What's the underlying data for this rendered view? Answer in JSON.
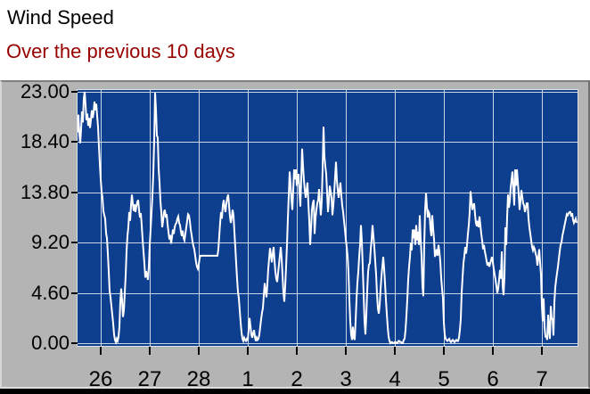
{
  "header": {
    "title": "Wind Speed",
    "subtitle": "Over the previous 10 days"
  },
  "colors": {
    "header_bg": "#ffffff",
    "title": "#000000",
    "subtitle": "#990000",
    "panel": "#b4b4b4",
    "plot_bg": "#0e3e8e",
    "grid": "#c9d4e4",
    "series_line": "#ffffff",
    "axis_text": "#000000",
    "tick": "#000000"
  },
  "chart_data": {
    "type": "line",
    "title": "Wind Speed",
    "subtitle": "Over the previous 10 days",
    "grid": true,
    "legend": false,
    "x_axis": {
      "unit": "day of month",
      "range_days": [
        0,
        10.2
      ],
      "tick_positions_days": [
        0.473,
        1.473,
        2.473,
        3.473,
        4.473,
        5.473,
        6.473,
        7.473,
        8.473,
        9.473
      ],
      "tick_labels": [
        "26",
        "27",
        "28",
        "1",
        "2",
        "3",
        "4",
        "5",
        "6",
        "7"
      ]
    },
    "y_axis": {
      "range": [
        0,
        23
      ],
      "tick_values": [
        23,
        18.4,
        13.8,
        9.2,
        4.6,
        0
      ],
      "tick_labels": [
        "23.00",
        "18.40",
        "13.80",
        "9.20",
        "4.60",
        "0.00"
      ]
    },
    "series": [
      {
        "name": "wind speed",
        "x_start_days": 0,
        "x_step_days": 0.0181818,
        "values": [
          19.3,
          20.9,
          19.2,
          18.3,
          19.6,
          21.2,
          20.2,
          22.4,
          23.0,
          21.8,
          20.4,
          21.0,
          19.9,
          20.6,
          19.7,
          20.4,
          21.3,
          20.6,
          21.1,
          22.1,
          21.3,
          21.9,
          20.8,
          19.8,
          18.0,
          16.4,
          15.0,
          13.9,
          13.3,
          12.1,
          11.7,
          11.4,
          10.1,
          9.6,
          8.2,
          6.6,
          4.8,
          4.2,
          3.4,
          2.6,
          1.8,
          0.8,
          0.3,
          0.1,
          0.4,
          0.2,
          0.6,
          1.5,
          3.8,
          5.0,
          3.9,
          2.4,
          3.0,
          4.6,
          6.2,
          8.4,
          9.8,
          10.6,
          12.0,
          11.2,
          12.6,
          13.6,
          12.8,
          12.1,
          12.7,
          12.0,
          12.5,
          12.9,
          13.1,
          12.2,
          11.5,
          11.9,
          10.8,
          9.5,
          8.4,
          7.3,
          6.0,
          6.6,
          6.2,
          5.8,
          7.0,
          9.0,
          10.4,
          11.9,
          13.5,
          15.5,
          18.5,
          22.9,
          21.4,
          19.0,
          18.8,
          16.0,
          14.7,
          13.0,
          12.0,
          10.6,
          11.2,
          12.0,
          12.2,
          11.5,
          11.8,
          10.9,
          10.2,
          9.5,
          9.9,
          9.1,
          9.7,
          10.4,
          10.0,
          10.6,
          10.9,
          11.0,
          11.4,
          11.6,
          11.0,
          10.8,
          10.2,
          9.8,
          10.3,
          9.6,
          9.4,
          10.0,
          10.6,
          11.2,
          11.8,
          11.7,
          11.2,
          10.4,
          9.9,
          9.3,
          8.9,
          8.6,
          8.0,
          7.4,
          7.0,
          6.8,
          7.2,
          7.8,
          8.0,
          8.0,
          8.0,
          8.0,
          8.0,
          8.0,
          8.0,
          8.0,
          8.0,
          8.0,
          8.0,
          8.0,
          8.0,
          8.0,
          8.0,
          8.0,
          8.0,
          8.0,
          8.0,
          8.0,
          8.6,
          9.8,
          11.0,
          12.0,
          11.4,
          12.6,
          13.1,
          12.4,
          12.0,
          12.8,
          13.3,
          13.6,
          12.6,
          11.6,
          11.0,
          11.5,
          12.2,
          11.7,
          10.2,
          8.8,
          7.3,
          5.9,
          4.7,
          4.1,
          3.0,
          1.9,
          1.0,
          0.4,
          0.2,
          0.5,
          0.3,
          0.2,
          0.4,
          0.3,
          1.2,
          2.3,
          1.6,
          0.8,
          0.5,
          0.9,
          1.2,
          0.6,
          0.2,
          0.5,
          0.3,
          0.4,
          0.8,
          1.5,
          2.2,
          2.8,
          3.2,
          4.4,
          5.5,
          4.8,
          4.2,
          5.4,
          6.8,
          7.8,
          8.7,
          8.0,
          7.4,
          8.2,
          8.8,
          7.6,
          6.5,
          5.9,
          5.6,
          6.4,
          7.2,
          8.0,
          8.8,
          7.8,
          6.2,
          4.6,
          3.8,
          5.2,
          7.0,
          9.0,
          11.4,
          13.5,
          15.7,
          14.6,
          13.1,
          12.2,
          14.0,
          15.9,
          15.0,
          15.9,
          14.4,
          15.0,
          15.5,
          13.8,
          12.5,
          15.0,
          17.8,
          16.2,
          14.9,
          14.0,
          13.3,
          14.0,
          14.7,
          12.8,
          11.2,
          9.0,
          10.5,
          12.2,
          12.8,
          13.1,
          10.0,
          11.4,
          12.2,
          12.8,
          13.1,
          14.1,
          12.8,
          11.7,
          13.0,
          16.0,
          19.8,
          17.1,
          16.2,
          15.5,
          13.8,
          12.0,
          13.0,
          14.4,
          13.9,
          13.3,
          11.7,
          12.6,
          13.8,
          15.2,
          16.6,
          14.9,
          14.0,
          13.3,
          14.0,
          14.7,
          13.5,
          12.6,
          12.0,
          11.2,
          10.4,
          9.5,
          8.8,
          8.0,
          6.5,
          4.0,
          2.0,
          0.8,
          0.3,
          1.5,
          0.5,
          0.3,
          2.0,
          4.0,
          5.5,
          6.5,
          7.9,
          9.0,
          10.8,
          9.3,
          7.0,
          4.5,
          2.0,
          0.8,
          2.5,
          4.8,
          6.5,
          7.2,
          7.3,
          8.6,
          9.5,
          10.8,
          9.8,
          8.8,
          7.5,
          6.3,
          4.5,
          3.2,
          2.7,
          3.5,
          4.9,
          6.1,
          7.0,
          7.9,
          6.8,
          5.5,
          4.0,
          2.7,
          1.5,
          0.6,
          0.2,
          0.0,
          0.1,
          0.1,
          0.0,
          0.0,
          0.1,
          0.1,
          0.0,
          0.0,
          0.2,
          0.2,
          0.1,
          0.1,
          0.0,
          0.0,
          0.3,
          0.4,
          1.2,
          2.5,
          4.0,
          5.8,
          7.0,
          7.9,
          9.2,
          8.5,
          10.4,
          9.6,
          10.4,
          9.0,
          10.8,
          9.4,
          10.2,
          9.0,
          11.7,
          9.5,
          8.0,
          5.2,
          4.3,
          9.0,
          12.2,
          13.7,
          12.5,
          11.5,
          12.0,
          11.8,
          10.5,
          9.8,
          11.7,
          10.5,
          9.5,
          7.9,
          8.2,
          8.6,
          8.0,
          9.0,
          8.4,
          7.5,
          6.0,
          5.0,
          4.1,
          1.9,
          0.8,
          0.4,
          0.3,
          0.2,
          0.3,
          0.4,
          0.2,
          0.1,
          0.2,
          0.3,
          0.2,
          0.1,
          0.2,
          0.3,
          0.2,
          0.2,
          0.5,
          1.2,
          2.2,
          4.6,
          6.0,
          7.3,
          8.0,
          8.8,
          8.2,
          9.0,
          10.0,
          10.8,
          12.0,
          13.9,
          13.0,
          12.2,
          12.6,
          12.8,
          11.8,
          11.0,
          10.7,
          11.2,
          10.6,
          11.6,
          10.8,
          10.0,
          9.4,
          8.6,
          9.0,
          8.4,
          8.0,
          7.5,
          7.1,
          7.4,
          7.0,
          7.3,
          7.6,
          7.9,
          7.4,
          6.8,
          6.3,
          5.8,
          5.2,
          4.6,
          5.0,
          5.8,
          6.7,
          5.9,
          8.4,
          5.2,
          4.4,
          6.0,
          10.6,
          9.0,
          11.5,
          13.6,
          12.4,
          13.0,
          14.2,
          15.0,
          15.7,
          14.0,
          12.6,
          15.9,
          14.4,
          15.9,
          14.8,
          13.6,
          12.2,
          13.0,
          14.0,
          13.4,
          12.8,
          12.6,
          12.0,
          12.4,
          12.8,
          12.8,
          11.4,
          10.6,
          10.0,
          9.4,
          8.8,
          8.5,
          8.8,
          8.6,
          8.2,
          7.9,
          7.1,
          7.8,
          8.6,
          7.4,
          6.3,
          3.4,
          2.0,
          4.1,
          1.5,
          0.6,
          0.6,
          0.3,
          2.6,
          1.2,
          0.4,
          3.4,
          2.2,
          2.2,
          0.7,
          3.7,
          5.1,
          5.8,
          6.4,
          7.0,
          7.7,
          8.4,
          9.0,
          9.2,
          9.8,
          10.2,
          10.6,
          11.0,
          11.4,
          11.8,
          11.7,
          11.9,
          12.0,
          12.0,
          11.6,
          11.9,
          11.3,
          11.0,
          11.2,
          11.4,
          11.0
        ]
      }
    ]
  }
}
